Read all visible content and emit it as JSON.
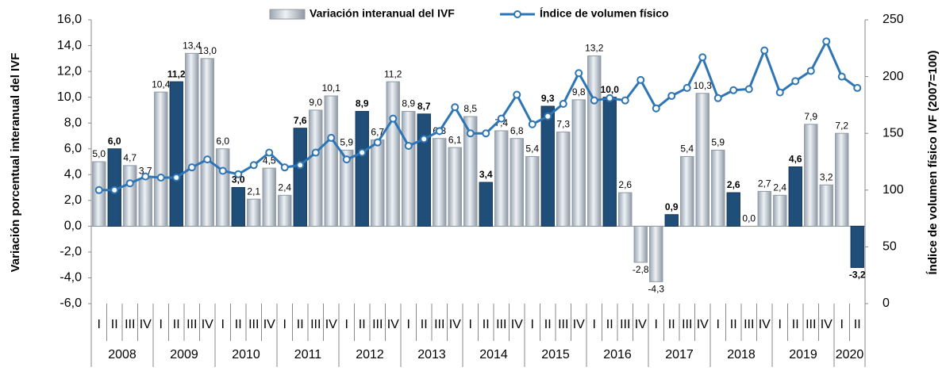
{
  "chart_data": {
    "type": "bar-line",
    "y_label": "Variación porcentual interanual del IVF",
    "y2_label": "Índice de volumen físico IVF (2007=100)",
    "categories": [
      "I",
      "II",
      "III",
      "IV",
      "I",
      "II",
      "III",
      "IV",
      "I",
      "II",
      "III",
      "IV",
      "I",
      "II",
      "III",
      "IV",
      "I",
      "II",
      "III",
      "IV",
      "I",
      "II",
      "III",
      "IV",
      "I",
      "II",
      "III",
      "IV",
      "I",
      "II",
      "III",
      "IV",
      "I",
      "II",
      "III",
      "IV",
      "I",
      "II",
      "III",
      "IV",
      "I",
      "II",
      "III",
      "IV",
      "I",
      "II",
      "III",
      "IV",
      "I",
      "II"
    ],
    "groups": [
      {
        "name": "2008",
        "count": 4
      },
      {
        "name": "2009",
        "count": 4
      },
      {
        "name": "2010",
        "count": 4
      },
      {
        "name": "2011",
        "count": 4
      },
      {
        "name": "2012",
        "count": 4
      },
      {
        "name": "2013",
        "count": 4
      },
      {
        "name": "2014",
        "count": 4
      },
      {
        "name": "2015",
        "count": 4
      },
      {
        "name": "2016",
        "count": 4
      },
      {
        "name": "2017",
        "count": 4
      },
      {
        "name": "2018",
        "count": 4
      },
      {
        "name": "2019",
        "count": 4
      },
      {
        "name": "2020",
        "count": 2
      }
    ],
    "series": [
      {
        "name": "Variación interanual del IVF",
        "kind": "bar",
        "color": "#c9d4df",
        "highlight": {
          "category": "II",
          "color": "#1f4e79"
        },
        "values": [
          5.0,
          6.0,
          4.7,
          3.7,
          10.4,
          11.2,
          13.4,
          13.0,
          6.0,
          3.0,
          2.1,
          4.5,
          2.4,
          7.6,
          9.0,
          10.1,
          5.9,
          8.9,
          6.7,
          11.2,
          8.9,
          8.7,
          6.8,
          6.1,
          8.5,
          3.4,
          7.4,
          6.8,
          5.4,
          9.3,
          7.3,
          9.8,
          13.2,
          10.0,
          2.6,
          -2.8,
          -4.3,
          0.9,
          5.4,
          10.3,
          5.9,
          2.6,
          0.0,
          2.7,
          2.4,
          4.6,
          7.9,
          3.2,
          7.2,
          -3.2
        ],
        "value_labels": [
          "5,0",
          "6,0",
          "4,7",
          "3,7",
          "10,4",
          "11,2",
          "13,4",
          "13,0",
          "6,0",
          "3,0",
          "2,1",
          "4,5",
          "2,4",
          "7,6",
          "9,0",
          "10,1",
          "5,9",
          "8,9",
          "6,7",
          "11,2",
          "8,9",
          "8,7",
          "6,8",
          "6,1",
          "8,5",
          "3,4",
          "7,4",
          "6,8",
          "5,4",
          "9,3",
          "7,3",
          "9,8",
          "13,2",
          "10,0",
          "2,6",
          "-2,8",
          "-4,3",
          "0,9",
          "5,4",
          "10,3",
          "5,9",
          "2,6",
          "0,0",
          "2,7",
          "2,4",
          "4,6",
          "7,9",
          "3,2",
          "7,2",
          "-3,2"
        ]
      },
      {
        "name": "Índice de volumen físico",
        "kind": "line",
        "axis": "y2",
        "color": "#2e75b6",
        "values": [
          100,
          100,
          106,
          112,
          111,
          111,
          120,
          127,
          117,
          114,
          122,
          133,
          120,
          122,
          133,
          146,
          127,
          133,
          142,
          163,
          139,
          145,
          152,
          173,
          150,
          150,
          163,
          184,
          158,
          165,
          176,
          203,
          179,
          181,
          179,
          197,
          172,
          183,
          190,
          217,
          181,
          188,
          189,
          223,
          186,
          196,
          205,
          231,
          200,
          190
        ]
      }
    ],
    "ylim": [
      -6,
      16
    ],
    "yticks": [
      {
        "value": -6,
        "label": "-6,0"
      },
      {
        "value": -4,
        "label": "-4,0"
      },
      {
        "value": -2,
        "label": "-2,0"
      },
      {
        "value": 0,
        "label": "0,0"
      },
      {
        "value": 2,
        "label": "2,0"
      },
      {
        "value": 4,
        "label": "4,0"
      },
      {
        "value": 6,
        "label": "6,0"
      },
      {
        "value": 8,
        "label": "8,0"
      },
      {
        "value": 10,
        "label": "10,0"
      },
      {
        "value": 12,
        "label": "12,0"
      },
      {
        "value": 14,
        "label": "14,0"
      },
      {
        "value": 16,
        "label": "16,0"
      }
    ],
    "y2lim": [
      0,
      250
    ],
    "y2ticks": [
      0,
      50,
      100,
      150,
      200,
      250
    ]
  }
}
